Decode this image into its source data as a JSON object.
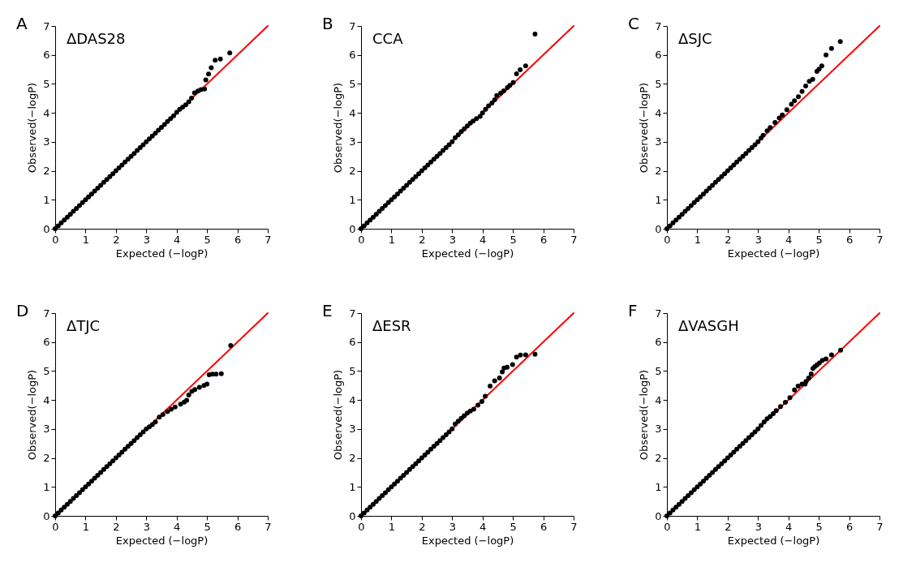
{
  "chart_data": [
    {
      "type": "scatter",
      "title": "ΔDAS28",
      "annotations": [
        "A"
      ],
      "xlabel": "Expected (−logP)",
      "ylabel": "Observed(−logP)",
      "xlim": [
        0,
        7
      ],
      "ylim": [
        0,
        7
      ],
      "xticks": [
        0,
        1,
        2,
        3,
        4,
        5,
        6,
        7
      ],
      "yticks": [
        0,
        1,
        2,
        3,
        4,
        5,
        6,
        7
      ],
      "grid": false,
      "legend": false,
      "series": [
        {
          "type": "line",
          "color": "#ff0000",
          "x": [
            0,
            7
          ],
          "values": [
            0,
            7
          ]
        },
        {
          "type": "scatter",
          "marker": "circle",
          "color": "#000000",
          "x": [
            0,
            0.1,
            0.2,
            0.3,
            0.4,
            0.5,
            0.6,
            0.7,
            0.8,
            0.9,
            1,
            1.1,
            1.2,
            1.3,
            1.4,
            1.5,
            1.6,
            1.7,
            1.8,
            1.9,
            2,
            2.1,
            2.2,
            2.3,
            2.4,
            2.5,
            2.6,
            2.7,
            2.8,
            2.9,
            3,
            3.1,
            3.2,
            3.3,
            3.4,
            3.5,
            3.6,
            3.7,
            3.8,
            3.9,
            4.0,
            4.1,
            4.2,
            4.3,
            4.4,
            4.49,
            4.59,
            4.7,
            4.8,
            4.92,
            4.96,
            5.05,
            5.14,
            5.27,
            5.44,
            5.75
          ],
          "values": [
            0,
            0.1,
            0.2,
            0.3,
            0.4,
            0.5,
            0.6,
            0.7,
            0.8,
            0.9,
            1,
            1.1,
            1.2,
            1.3,
            1.4,
            1.5,
            1.6,
            1.7,
            1.8,
            1.9,
            2,
            2.1,
            2.2,
            2.3,
            2.4,
            2.5,
            2.6,
            2.7,
            2.8,
            2.9,
            3,
            3.1,
            3.2,
            3.3,
            3.4,
            3.5,
            3.6,
            3.7,
            3.8,
            3.9,
            4.02,
            4.12,
            4.2,
            4.28,
            4.38,
            4.51,
            4.69,
            4.75,
            4.8,
            4.82,
            5.14,
            5.34,
            5.56,
            5.82,
            5.86,
            6.07
          ]
        }
      ]
    },
    {
      "type": "scatter",
      "title": "CCA",
      "annotations": [
        "B"
      ],
      "xlabel": "Expected (−logP)",
      "ylabel": "Observed(−logP)",
      "xlim": [
        0,
        7
      ],
      "ylim": [
        0,
        7
      ],
      "xticks": [
        0,
        1,
        2,
        3,
        4,
        5,
        6,
        7
      ],
      "yticks": [
        0,
        1,
        2,
        3,
        4,
        5,
        6,
        7
      ],
      "grid": false,
      "legend": false,
      "series": [
        {
          "type": "line",
          "color": "#ff0000",
          "x": [
            0,
            7
          ],
          "values": [
            0,
            7
          ]
        },
        {
          "type": "scatter",
          "marker": "circle",
          "color": "#000000",
          "x": [
            0,
            0.1,
            0.2,
            0.3,
            0.4,
            0.5,
            0.6,
            0.7,
            0.8,
            0.9,
            1,
            1.1,
            1.2,
            1.3,
            1.4,
            1.5,
            1.6,
            1.7,
            1.8,
            1.9,
            2,
            2.1,
            2.2,
            2.3,
            2.4,
            2.5,
            2.6,
            2.7,
            2.8,
            2.9,
            3,
            3.1,
            3.2,
            3.3,
            3.4,
            3.5,
            3.6,
            3.69,
            3.8,
            3.92,
            4.0,
            4.1,
            4.2,
            4.31,
            4.4,
            4.47,
            4.6,
            4.7,
            4.82,
            4.9,
            5.01,
            5.12,
            5.24,
            5.42,
            5.73
          ],
          "values": [
            0,
            0.1,
            0.2,
            0.3,
            0.4,
            0.5,
            0.6,
            0.7,
            0.8,
            0.9,
            1,
            1.1,
            1.2,
            1.3,
            1.4,
            1.5,
            1.6,
            1.7,
            1.8,
            1.9,
            2,
            2.1,
            2.2,
            2.3,
            2.4,
            2.5,
            2.6,
            2.7,
            2.8,
            2.9,
            3,
            3.14,
            3.24,
            3.35,
            3.45,
            3.55,
            3.65,
            3.72,
            3.8,
            3.88,
            4.0,
            4.12,
            4.24,
            4.34,
            4.45,
            4.6,
            4.68,
            4.76,
            4.87,
            4.95,
            5.05,
            5.35,
            5.49,
            5.62,
            6.72
          ]
        }
      ]
    },
    {
      "type": "scatter",
      "title": "ΔSJC",
      "annotations": [
        "C"
      ],
      "xlabel": "Expected (−logP)",
      "ylabel": "Observed(−logP)",
      "xlim": [
        0,
        7
      ],
      "ylim": [
        0,
        7
      ],
      "xticks": [
        0,
        1,
        2,
        3,
        4,
        5,
        6,
        7
      ],
      "yticks": [
        0,
        1,
        2,
        3,
        4,
        5,
        6,
        7
      ],
      "grid": false,
      "legend": false,
      "series": [
        {
          "type": "line",
          "color": "#ff0000",
          "x": [
            0,
            7
          ],
          "values": [
            0,
            7
          ]
        },
        {
          "type": "scatter",
          "marker": "circle",
          "color": "#000000",
          "x": [
            0,
            0.1,
            0.2,
            0.3,
            0.4,
            0.5,
            0.6,
            0.7,
            0.8,
            0.9,
            1,
            1.1,
            1.2,
            1.3,
            1.4,
            1.5,
            1.6,
            1.7,
            1.8,
            1.9,
            2,
            2.1,
            2.2,
            2.3,
            2.4,
            2.5,
            2.6,
            2.7,
            2.8,
            2.9,
            3,
            3.1,
            3.17,
            3.3,
            3.4,
            3.56,
            3.7,
            3.8,
            3.95,
            4.1,
            4.2,
            4.33,
            4.45,
            4.57,
            4.69,
            4.8,
            4.94,
            5.01,
            5.1,
            5.24,
            5.42,
            5.71
          ],
          "values": [
            0,
            0.1,
            0.2,
            0.3,
            0.4,
            0.5,
            0.6,
            0.7,
            0.8,
            0.9,
            1,
            1.1,
            1.2,
            1.3,
            1.4,
            1.5,
            1.6,
            1.7,
            1.8,
            1.9,
            2,
            2.1,
            2.2,
            2.3,
            2.4,
            2.5,
            2.6,
            2.7,
            2.8,
            2.9,
            3,
            3.13,
            3.23,
            3.38,
            3.49,
            3.67,
            3.82,
            3.93,
            4.11,
            4.3,
            4.42,
            4.56,
            4.74,
            4.93,
            5.09,
            5.16,
            5.43,
            5.51,
            5.62,
            6.0,
            6.22,
            6.46
          ]
        }
      ]
    },
    {
      "type": "scatter",
      "title": "ΔTJC",
      "annotations": [
        "D"
      ],
      "xlabel": "Expected (−logP)",
      "ylabel": "Observed(−logP)",
      "xlim": [
        0,
        7
      ],
      "ylim": [
        0,
        7
      ],
      "xticks": [
        0,
        1,
        2,
        3,
        4,
        5,
        6,
        7
      ],
      "yticks": [
        0,
        1,
        2,
        3,
        4,
        5,
        6,
        7
      ],
      "grid": false,
      "legend": false,
      "series": [
        {
          "type": "line",
          "color": "#ff0000",
          "x": [
            0,
            7
          ],
          "values": [
            0,
            7
          ]
        },
        {
          "type": "scatter",
          "marker": "circle",
          "color": "#000000",
          "x": [
            0,
            0.1,
            0.2,
            0.3,
            0.4,
            0.5,
            0.6,
            0.7,
            0.8,
            0.9,
            1,
            1.1,
            1.2,
            1.3,
            1.4,
            1.5,
            1.6,
            1.7,
            1.8,
            1.9,
            2,
            2.1,
            2.2,
            2.3,
            2.4,
            2.5,
            2.6,
            2.7,
            2.8,
            2.9,
            3,
            3.1,
            3.2,
            3.3,
            3.43,
            3.55,
            3.7,
            3.82,
            3.95,
            4.13,
            4.25,
            4.33,
            4.4,
            4.5,
            4.6,
            4.75,
            4.9,
            5.0,
            5.07,
            5.18,
            5.3,
            5.47,
            5.78
          ],
          "values": [
            0,
            0.1,
            0.2,
            0.3,
            0.4,
            0.5,
            0.6,
            0.7,
            0.8,
            0.9,
            1,
            1.1,
            1.2,
            1.3,
            1.4,
            1.5,
            1.6,
            1.7,
            1.8,
            1.9,
            2,
            2.1,
            2.2,
            2.3,
            2.4,
            2.5,
            2.6,
            2.7,
            2.8,
            2.9,
            3,
            3.07,
            3.15,
            3.24,
            3.41,
            3.5,
            3.6,
            3.68,
            3.76,
            3.86,
            3.93,
            3.99,
            4.17,
            4.3,
            4.36,
            4.44,
            4.5,
            4.55,
            4.87,
            4.89,
            4.89,
            4.91,
            5.88
          ]
        }
      ]
    },
    {
      "type": "scatter",
      "title": "ΔESR",
      "annotations": [
        "E"
      ],
      "xlabel": "Expected (−logP)",
      "ylabel": "Observed(−logP)",
      "xlim": [
        0,
        7
      ],
      "ylim": [
        0,
        7
      ],
      "xticks": [
        0,
        1,
        2,
        3,
        4,
        5,
        6,
        7
      ],
      "yticks": [
        0,
        1,
        2,
        3,
        4,
        5,
        6,
        7
      ],
      "grid": false,
      "legend": false,
      "series": [
        {
          "type": "line",
          "color": "#ff0000",
          "x": [
            0,
            7
          ],
          "values": [
            0,
            7
          ]
        },
        {
          "type": "scatter",
          "marker": "circle",
          "color": "#000000",
          "x": [
            0,
            0.1,
            0.2,
            0.3,
            0.4,
            0.5,
            0.6,
            0.7,
            0.8,
            0.9,
            1,
            1.1,
            1.2,
            1.3,
            1.4,
            1.5,
            1.6,
            1.7,
            1.8,
            1.9,
            2,
            2.1,
            2.2,
            2.3,
            2.4,
            2.5,
            2.6,
            2.7,
            2.8,
            2.9,
            3,
            3.1,
            3.2,
            3.3,
            3.4,
            3.5,
            3.6,
            3.71,
            3.85,
            3.98,
            4.09,
            4.25,
            4.4,
            4.56,
            4.65,
            4.71,
            4.81,
            4.99,
            5.12,
            5.25,
            5.42,
            5.73
          ],
          "values": [
            0,
            0.1,
            0.2,
            0.3,
            0.4,
            0.5,
            0.6,
            0.7,
            0.8,
            0.9,
            1,
            1.1,
            1.2,
            1.3,
            1.4,
            1.5,
            1.6,
            1.7,
            1.8,
            1.9,
            2,
            2.1,
            2.2,
            2.3,
            2.4,
            2.5,
            2.6,
            2.7,
            2.8,
            2.9,
            3,
            3.17,
            3.27,
            3.37,
            3.46,
            3.55,
            3.62,
            3.68,
            3.82,
            3.95,
            4.13,
            4.48,
            4.66,
            4.76,
            4.97,
            5.1,
            5.13,
            5.22,
            5.48,
            5.55,
            5.56,
            5.58
          ]
        }
      ]
    },
    {
      "type": "scatter",
      "title": "ΔVASGH",
      "annotations": [
        "F"
      ],
      "xlabel": "Expected (−logP)",
      "ylabel": "Observed(−logP)",
      "xlim": [
        0,
        7
      ],
      "ylim": [
        0,
        7
      ],
      "xticks": [
        0,
        1,
        2,
        3,
        4,
        5,
        6,
        7
      ],
      "yticks": [
        0,
        1,
        2,
        3,
        4,
        5,
        6,
        7
      ],
      "grid": false,
      "legend": false,
      "series": [
        {
          "type": "line",
          "color": "#ff0000",
          "x": [
            0,
            7
          ],
          "values": [
            0,
            7
          ]
        },
        {
          "type": "scatter",
          "marker": "circle",
          "color": "#000000",
          "x": [
            0,
            0.1,
            0.2,
            0.3,
            0.4,
            0.5,
            0.6,
            0.7,
            0.8,
            0.9,
            1,
            1.1,
            1.2,
            1.3,
            1.4,
            1.5,
            1.6,
            1.7,
            1.8,
            1.9,
            2,
            2.1,
            2.2,
            2.3,
            2.4,
            2.5,
            2.6,
            2.7,
            2.8,
            2.9,
            3,
            3.1,
            3.2,
            3.3,
            3.4,
            3.5,
            3.6,
            3.74,
            3.9,
            4.05,
            4.2,
            4.32,
            4.45,
            4.55,
            4.58,
            4.67,
            4.75,
            4.81,
            4.87,
            4.94,
            5.02,
            5.12,
            5.24,
            5.42,
            5.72
          ],
          "values": [
            0,
            0.1,
            0.2,
            0.3,
            0.4,
            0.5,
            0.6,
            0.7,
            0.8,
            0.9,
            1,
            1.1,
            1.2,
            1.3,
            1.4,
            1.5,
            1.6,
            1.7,
            1.8,
            1.9,
            2,
            2.1,
            2.2,
            2.3,
            2.4,
            2.5,
            2.6,
            2.7,
            2.8,
            2.9,
            3,
            3.12,
            3.24,
            3.35,
            3.43,
            3.53,
            3.63,
            3.77,
            3.92,
            4.08,
            4.35,
            4.48,
            4.55,
            4.55,
            4.64,
            4.76,
            4.9,
            5.09,
            5.15,
            5.21,
            5.28,
            5.37,
            5.42,
            5.56,
            5.72
          ]
        }
      ]
    }
  ]
}
